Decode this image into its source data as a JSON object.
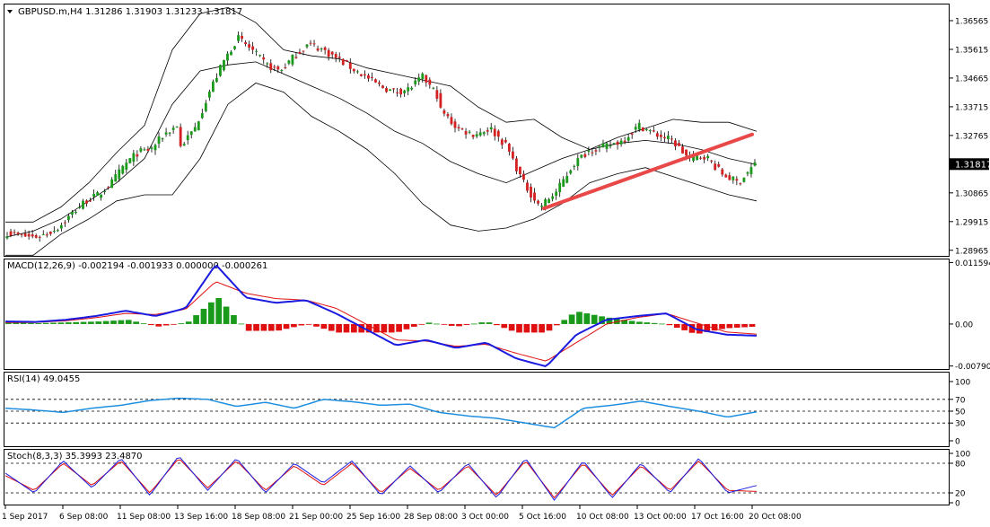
{
  "colors": {
    "background": "#ffffff",
    "axis": "#000000",
    "candle_up": "#1a9a1a",
    "candle_down": "#d42020",
    "bollinger": "#000000",
    "trendline": "#e84848",
    "macd_main": "#1a1ae0",
    "macd_signal": "#e01010",
    "macd_hist_up": "#1a9a1a",
    "macd_hist_down": "#e01010",
    "rsi": "#1e8fe0",
    "stoch_main": "#1a1ae0",
    "stoch_signal": "#e01010",
    "current_price_box": "#000000"
  },
  "chart_data": [
    {
      "type": "candlestick",
      "title": "GBPUSD.m,H4  1.31286 1.31903 1.31233 1.31817",
      "symbol": "GBPUSD.m",
      "timeframe": "H4",
      "ohlc_current": {
        "open": 1.31286,
        "high": 1.31903,
        "low": 1.31233,
        "close": 1.31817
      },
      "current_price_label": "1.31817",
      "ylim": [
        1.2881,
        1.3707
      ],
      "yticks": [
        "1.36565",
        "1.35615",
        "1.34665",
        "1.33715",
        "1.32765",
        "1.30865",
        "1.29915",
        "1.28965"
      ],
      "xlabels": [
        "1 Sep 2017",
        "6 Sep 08:00",
        "11 Sep 08:00",
        "13 Sep 16:00",
        "18 Sep 08:00",
        "21 Sep 00:00",
        "25 Sep 16:00",
        "28 Sep 08:00",
        "3 Oct 00:00",
        "5 Oct 16:00",
        "10 Oct 08:00",
        "13 Oct 00:00",
        "17 Oct 16:00",
        "20 Oct 08:00"
      ],
      "price_path": [
        [
          1.2955,
          1.2945,
          1.294,
          1.295,
          1.2975,
          1.302,
          1.306,
          1.308,
          1.312,
          1.318,
          1.322,
          1.323,
          1.328,
          1.331
        ],
        [
          1.324,
          1.33,
          1.342,
          1.352,
          1.36,
          1.356,
          1.351,
          1.349,
          1.354,
          1.358,
          1.356,
          1.353,
          1.35,
          1.347,
          1.344,
          1.342,
          1.343,
          1.347,
          1.341
        ],
        [
          1.336,
          1.33,
          1.328,
          1.33,
          1.324,
          1.312,
          1.304,
          1.309,
          1.318,
          1.323,
          1.324,
          1.326,
          1.331,
          1.328,
          1.326,
          1.32,
          1.321,
          1.315,
          1.312,
          1.3182
        ]
      ],
      "bollinger_bands": {
        "upper": [
          1.299,
          1.299,
          1.304,
          1.312,
          1.322,
          1.331,
          1.356,
          1.368,
          1.37,
          1.365,
          1.356,
          1.354,
          1.353,
          1.35,
          1.348,
          1.346,
          1.344,
          1.337,
          1.332,
          1.333,
          1.327,
          1.323,
          1.327,
          1.33,
          1.333,
          1.332,
          1.332,
          1.329
        ],
        "middle": [
          1.294,
          1.296,
          1.3,
          1.306,
          1.312,
          1.32,
          1.338,
          1.349,
          1.351,
          1.352,
          1.348,
          1.344,
          1.34,
          1.335,
          1.329,
          1.325,
          1.319,
          1.315,
          1.312,
          1.316,
          1.32,
          1.323,
          1.325,
          1.326,
          1.325,
          1.323,
          1.32,
          1.318
        ],
        "lower": [
          1.288,
          1.288,
          1.295,
          1.3,
          1.306,
          1.308,
          1.308,
          1.32,
          1.338,
          1.345,
          1.342,
          1.334,
          1.329,
          1.323,
          1.315,
          1.305,
          1.298,
          1.296,
          1.297,
          1.3,
          1.305,
          1.312,
          1.315,
          1.317,
          1.314,
          1.311,
          1.308,
          1.306
        ]
      },
      "trendline": {
        "from": {
          "x": "5 Oct 16:00",
          "y": 1.3035
        },
        "to": {
          "x": "20 Oct 08:00",
          "y": 1.328
        }
      }
    },
    {
      "type": "line",
      "title": "MACD(12,26,9) -0.002194 -0.001933 0.000000 -0.000261",
      "ylim": [
        -0.0083,
        0.012
      ],
      "yticks": [
        "0.011594",
        "0.00",
        "-0.007909"
      ],
      "series": [
        {
          "name": "MACD",
          "values": [
            0.0005,
            0.0004,
            0.0008,
            0.0015,
            0.0025,
            0.0015,
            0.003,
            0.0112,
            0.005,
            0.004,
            0.0045,
            0.002,
            -0.001,
            -0.004,
            -0.003,
            -0.0045,
            -0.0035,
            -0.0065,
            -0.008,
            -0.002,
            0.0008,
            0.0015,
            0.002,
            -0.001,
            -0.002,
            -0.0022
          ]
        },
        {
          "name": "Signal",
          "values": [
            0.0003,
            0.0003,
            0.0006,
            0.0012,
            0.002,
            0.0018,
            0.0028,
            0.008,
            0.0058,
            0.0048,
            0.0045,
            0.003,
            0.0,
            -0.003,
            -0.0032,
            -0.0042,
            -0.0038,
            -0.0055,
            -0.007,
            -0.0035,
            0.0,
            0.0012,
            0.002,
            0.0002,
            -0.0015,
            -0.0019
          ]
        }
      ]
    },
    {
      "type": "line",
      "title": "RSI(14) 49.0455",
      "ylim": [
        0,
        100
      ],
      "yticks": [
        "100",
        "70",
        "50",
        "30",
        "0"
      ],
      "levels": [
        70,
        50,
        30
      ],
      "series": [
        {
          "name": "RSI",
          "values": [
            55,
            52,
            48,
            55,
            60,
            68,
            72,
            70,
            58,
            65,
            55,
            70,
            66,
            60,
            62,
            48,
            42,
            38,
            30,
            22,
            55,
            60,
            67,
            58,
            50,
            40,
            49
          ]
        }
      ]
    },
    {
      "type": "line",
      "title": "Stoch(8,3,3) 35.3993 23.4870",
      "ylim": [
        0,
        100
      ],
      "yticks": [
        "100",
        "80",
        "20",
        "0"
      ],
      "levels": [
        80,
        20
      ],
      "series": [
        {
          "name": "Main",
          "values": [
            60,
            20,
            85,
            30,
            90,
            15,
            95,
            25,
            90,
            20,
            80,
            40,
            85,
            15,
            75,
            20,
            80,
            10,
            90,
            5,
            85,
            10,
            80,
            20,
            90,
            20,
            35
          ]
        },
        {
          "name": "Signal",
          "values": [
            55,
            25,
            80,
            35,
            85,
            20,
            90,
            30,
            85,
            25,
            75,
            35,
            80,
            20,
            70,
            25,
            75,
            15,
            85,
            10,
            80,
            15,
            75,
            25,
            85,
            25,
            23
          ]
        }
      ]
    }
  ]
}
